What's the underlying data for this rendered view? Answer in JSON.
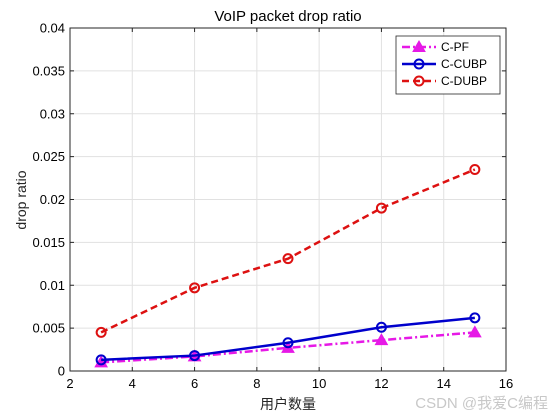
{
  "chart_data": {
    "type": "line",
    "title": "VoIP packet drop ratio",
    "xlabel": "用户数量",
    "ylabel": "drop ratio",
    "xlim": [
      2,
      16
    ],
    "ylim": [
      0,
      0.04
    ],
    "xticks": [
      "2",
      "4",
      "6",
      "8",
      "10",
      "12",
      "14",
      "16"
    ],
    "yticks": [
      "0",
      "0.005",
      "0.01",
      "0.015",
      "0.02",
      "0.025",
      "0.03",
      "0.035",
      "0.04"
    ],
    "grid": true,
    "legend_position": "top-right",
    "x": [
      3,
      6,
      9,
      12,
      15
    ],
    "series": [
      {
        "name": "C-PF",
        "color": "#e619e6",
        "dash": "dash-dot",
        "marker": "triangle",
        "values": [
          0.001,
          0.0017,
          0.0027,
          0.0036,
          0.0045
        ]
      },
      {
        "name": "C-CUBP",
        "color": "#0000cc",
        "dash": "solid",
        "marker": "circle",
        "values": [
          0.0013,
          0.0018,
          0.0033,
          0.0051,
          0.0062
        ]
      },
      {
        "name": "C-DUBP",
        "color": "#dd1111",
        "dash": "dashed",
        "marker": "circle",
        "values": [
          0.0045,
          0.0097,
          0.0131,
          0.019,
          0.0235
        ]
      }
    ]
  },
  "watermark": "CSDN @我爱C编程"
}
